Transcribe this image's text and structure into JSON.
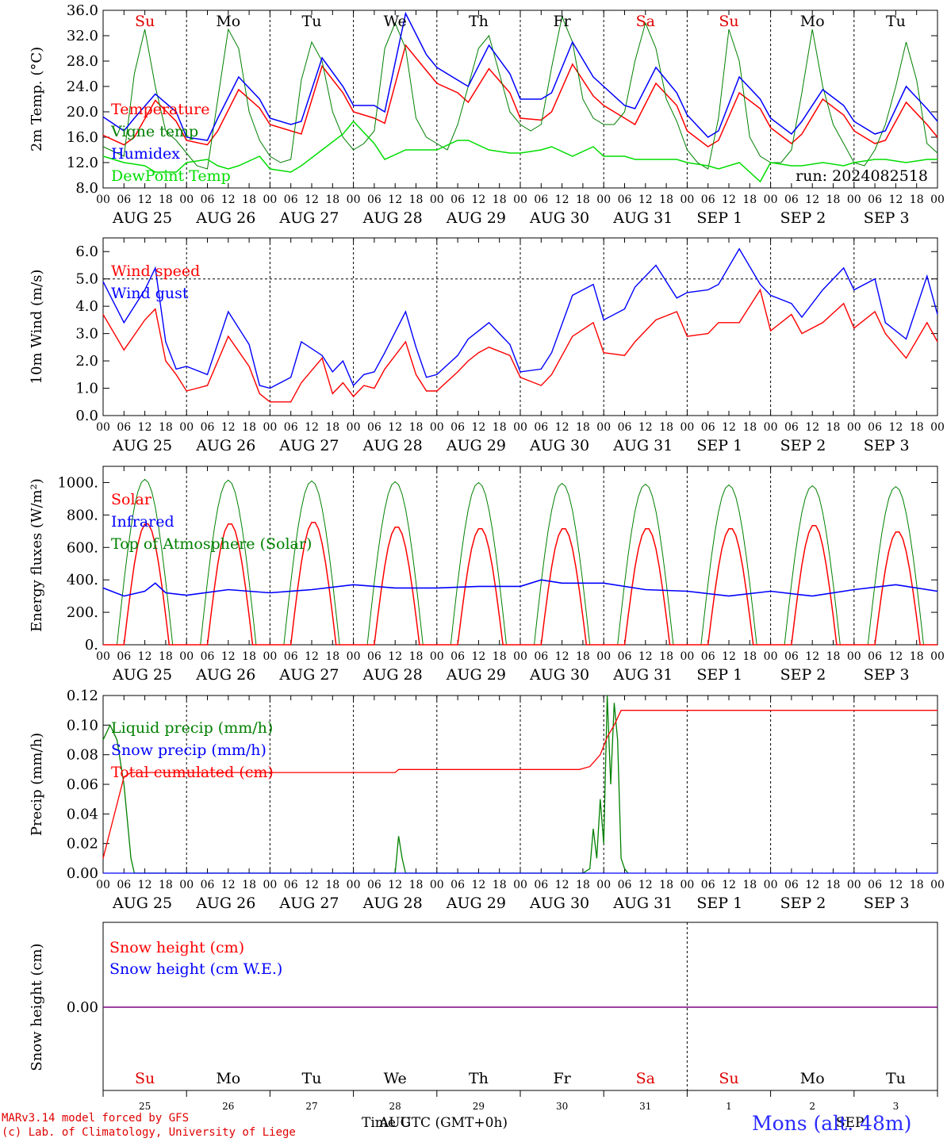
{
  "run_label": "run: 2024082518",
  "footer": {
    "model": "MARv3.14 model forced by GFS",
    "credit": "(c) Lab. of Climatology, University of Liege",
    "time_label": "Time UTC (GMT+0h)",
    "month_label": "AUG",
    "month_label2": "SEP",
    "station": "Mons (alt. 48m)"
  },
  "time_axis": {
    "hour_ticks": [
      "00",
      "06",
      "12",
      "18"
    ],
    "dates": [
      "AUG 25",
      "AUG 26",
      "AUG 27",
      "AUG 28",
      "AUG 29",
      "AUG 30",
      "AUG 31",
      "SEP  1",
      "SEP  2",
      "SEP  3"
    ],
    "weekdays": [
      "Su",
      "Mo",
      "Tu",
      "We",
      "Th",
      "Fr",
      "Sa",
      "Su",
      "Mo",
      "Tu"
    ],
    "weekend_color": "#e00000",
    "weekday_color": "#000000",
    "day_numbers": [
      "25",
      "26",
      "27",
      "28",
      "29",
      "30",
      "31",
      "1",
      "2",
      "3"
    ]
  },
  "colors": {
    "red": "#ff0000",
    "green": "#008000",
    "blue": "#0000ff",
    "lime": "#00dd00",
    "purple": "#800080"
  },
  "chart_data": [
    {
      "type": "line",
      "ylabel": "2m Temp. (°C)",
      "ylim": [
        8,
        36
      ],
      "yticks": [
        "8.0",
        "12.0",
        "16.0",
        "20.0",
        "24.0",
        "28.0",
        "32.0",
        "36.0"
      ],
      "x_unit": "hours since AUG 25 00 UTC",
      "series": [
        {
          "name": "Temperature",
          "color": "red",
          "x": [
            0,
            6,
            9,
            15,
            21,
            24,
            30,
            33,
            39,
            45,
            48,
            54,
            57,
            63,
            69,
            72,
            78,
            81,
            87,
            93,
            96,
            102,
            105,
            111,
            117,
            120,
            126,
            129,
            135,
            141,
            144,
            150,
            153,
            159,
            165,
            168,
            174,
            177,
            183,
            189,
            192,
            198,
            201,
            207,
            213,
            216,
            222,
            225,
            231,
            237,
            240
          ],
          "values": [
            16.3,
            14.8,
            16,
            21.8,
            18.5,
            15.5,
            14.8,
            17,
            23.5,
            20.6,
            18,
            17,
            16.5,
            27.2,
            23,
            20,
            19,
            18.2,
            30.5,
            26.5,
            24.5,
            23,
            21.5,
            26.8,
            23,
            19,
            18.7,
            20,
            27.5,
            22.5,
            21,
            19,
            18,
            24.5,
            21,
            17,
            14.5,
            15.5,
            23,
            20.5,
            17.5,
            15,
            16.5,
            22,
            19.5,
            17,
            15,
            15.5,
            21.5,
            18,
            16
          ]
        },
        {
          "name": "Vigne temp",
          "color": "green",
          "x": [
            0,
            6,
            9,
            12,
            15,
            18,
            21,
            24,
            27,
            30,
            33,
            36,
            39,
            42,
            45,
            48,
            51,
            54,
            57,
            60,
            63,
            66,
            69,
            72,
            75,
            78,
            81,
            84,
            87,
            90,
            93,
            96,
            99,
            102,
            105,
            108,
            111,
            114,
            117,
            120,
            123,
            126,
            129,
            132,
            135,
            138,
            141,
            144,
            147,
            150,
            153,
            156,
            159,
            162,
            165,
            168,
            171,
            174,
            177,
            180,
            183,
            186,
            189,
            192,
            195,
            198,
            201,
            204,
            207,
            210,
            213,
            216,
            219,
            222,
            225,
            228,
            231,
            234,
            237,
            240
          ],
          "values": [
            14.5,
            13,
            26,
            33,
            24,
            17,
            15.5,
            13.5,
            11.5,
            11,
            22,
            33,
            30,
            20,
            15.5,
            13,
            12,
            12.5,
            25,
            31,
            28,
            20,
            16,
            14,
            15,
            17,
            30,
            34,
            30,
            19,
            16,
            15,
            14,
            18,
            24,
            30,
            32,
            26,
            20,
            18,
            17,
            18,
            27,
            35,
            31,
            22,
            19,
            18,
            18,
            20,
            28,
            34,
            30,
            22,
            18.5,
            14,
            12,
            11,
            19,
            33,
            28,
            16,
            13,
            12,
            12,
            14,
            23,
            33,
            24,
            18,
            15,
            12,
            11.5,
            14,
            18,
            24,
            31,
            25,
            15,
            13.5
          ]
        },
        {
          "name": "Humidex",
          "color": "blue",
          "x": [
            0,
            6,
            9,
            15,
            21,
            24,
            30,
            33,
            39,
            45,
            48,
            54,
            57,
            63,
            69,
            72,
            78,
            81,
            87,
            93,
            96,
            102,
            105,
            111,
            117,
            120,
            126,
            129,
            135,
            141,
            144,
            150,
            153,
            159,
            165,
            168,
            174,
            177,
            183,
            189,
            192,
            198,
            201,
            207,
            213,
            216,
            222,
            225,
            231,
            237,
            240
          ],
          "values": [
            19.2,
            17,
            19,
            22.8,
            20,
            16,
            15.5,
            19,
            25.5,
            22,
            19,
            18,
            18.5,
            28.5,
            24,
            21,
            21,
            20,
            35.5,
            29,
            27,
            25,
            24,
            30.5,
            26,
            22,
            22,
            23,
            31,
            25.5,
            24,
            21,
            20.5,
            27,
            23,
            19.5,
            16,
            17,
            25.5,
            22,
            19,
            16.5,
            18.5,
            23.5,
            21,
            18.5,
            16.5,
            17,
            24,
            20.5,
            18.5
          ]
        },
        {
          "name": "DewPoint Temp",
          "color": "lime",
          "x": [
            0,
            6,
            12,
            15,
            21,
            24,
            30,
            33,
            36,
            39,
            45,
            48,
            54,
            57,
            63,
            69,
            72,
            78,
            81,
            87,
            93,
            96,
            102,
            105,
            111,
            117,
            120,
            126,
            129,
            135,
            141,
            144,
            150,
            153,
            159,
            165,
            168,
            174,
            177,
            183,
            189,
            192,
            198,
            201,
            207,
            213,
            216,
            222,
            225,
            231,
            237,
            240
          ],
          "values": [
            13,
            12,
            11.5,
            10.5,
            10.5,
            12,
            12.5,
            11.5,
            11,
            11.5,
            13,
            11,
            10.5,
            11.5,
            14,
            16.5,
            18.5,
            15,
            12.5,
            14,
            14,
            14,
            15.5,
            15.5,
            14,
            13.5,
            13.5,
            14,
            14.5,
            13,
            14.5,
            13,
            13,
            12.5,
            12.5,
            12.5,
            12,
            11.5,
            11,
            12,
            9,
            12,
            11.5,
            11.5,
            12,
            11.5,
            12,
            12.5,
            12.5,
            12,
            12.5,
            12.5
          ]
        }
      ]
    },
    {
      "type": "line",
      "ylabel": "10m Wind (m/s)",
      "ylim": [
        0,
        6.5
      ],
      "yticks": [
        "0.0",
        "1.0",
        "2.0",
        "3.0",
        "4.0",
        "5.0",
        "6.0"
      ],
      "reference_line": 5.0,
      "series": [
        {
          "name": "Wind speed",
          "color": "red",
          "x": [
            0,
            6,
            12,
            15,
            18,
            21,
            24,
            30,
            36,
            42,
            45,
            48,
            54,
            57,
            63,
            66,
            69,
            72,
            75,
            78,
            81,
            87,
            90,
            93,
            96,
            102,
            105,
            108,
            111,
            117,
            120,
            126,
            129,
            135,
            141,
            144,
            150,
            153,
            159,
            165,
            168,
            174,
            177,
            183,
            189,
            192,
            198,
            201,
            207,
            213,
            216,
            222,
            225,
            231,
            237,
            240
          ],
          "values": [
            3.7,
            2.4,
            3.5,
            3.9,
            2.0,
            1.5,
            0.9,
            1.1,
            2.9,
            1.8,
            0.8,
            0.5,
            0.5,
            1.2,
            2.1,
            0.8,
            1.2,
            0.7,
            1.1,
            1.0,
            1.7,
            2.7,
            1.5,
            0.9,
            0.9,
            1.6,
            2.0,
            2.3,
            2.5,
            2.2,
            1.4,
            1.1,
            1.5,
            2.9,
            3.4,
            2.3,
            2.2,
            2.7,
            3.5,
            3.8,
            2.9,
            3.0,
            3.4,
            3.4,
            4.6,
            3.1,
            3.7,
            3.0,
            3.4,
            4.1,
            3.2,
            3.8,
            3.0,
            2.1,
            3.4,
            2.7
          ]
        },
        {
          "name": "Wind gust",
          "color": "blue",
          "x": [
            0,
            6,
            12,
            15,
            18,
            21,
            24,
            30,
            36,
            42,
            45,
            48,
            54,
            57,
            63,
            66,
            69,
            72,
            75,
            78,
            81,
            87,
            90,
            93,
            96,
            102,
            105,
            108,
            111,
            117,
            120,
            126,
            129,
            135,
            141,
            144,
            150,
            153,
            159,
            165,
            168,
            174,
            177,
            183,
            189,
            192,
            198,
            201,
            207,
            213,
            216,
            222,
            225,
            231,
            237,
            240
          ],
          "values": [
            4.9,
            3.4,
            4.6,
            5.4,
            2.7,
            1.7,
            1.8,
            1.5,
            3.8,
            2.6,
            1.1,
            1.0,
            1.4,
            2.7,
            2.2,
            1.6,
            2.0,
            1.1,
            1.5,
            1.6,
            2.3,
            3.8,
            2.5,
            1.4,
            1.5,
            2.2,
            2.8,
            3.1,
            3.4,
            2.6,
            1.6,
            1.7,
            2.3,
            4.4,
            4.8,
            3.5,
            3.9,
            4.7,
            5.5,
            4.3,
            4.5,
            4.6,
            4.8,
            6.1,
            4.8,
            4.4,
            4.1,
            3.6,
            4.6,
            5.4,
            4.6,
            5.0,
            3.4,
            2.8,
            5.1,
            3.7
          ]
        }
      ]
    },
    {
      "type": "line",
      "ylabel": "Energy fluxes (W/m²)",
      "ylim": [
        0,
        1100
      ],
      "yticks": [
        "0.",
        "200.",
        "400.",
        "600.",
        "800.",
        "1000."
      ],
      "series": [
        {
          "name": "Solar",
          "color": "red",
          "daily_peaks": [
            750,
            750,
            760,
            730,
            720,
            720,
            720,
            720,
            740,
            700
          ],
          "x_note": "daylight 06–19 UTC"
        },
        {
          "name": "Infrared",
          "color": "blue",
          "x": [
            0,
            6,
            12,
            15,
            18,
            24,
            36,
            48,
            60,
            72,
            84,
            96,
            108,
            120,
            126,
            132,
            144,
            156,
            168,
            180,
            192,
            204,
            216,
            228,
            240
          ],
          "values": [
            350,
            300,
            330,
            380,
            320,
            305,
            340,
            320,
            340,
            370,
            350,
            350,
            360,
            360,
            400,
            380,
            380,
            340,
            330,
            300,
            330,
            300,
            340,
            370,
            330
          ]
        },
        {
          "name": "Top of Atmosphere (Solar)",
          "color": "green",
          "daily_peaks": [
            1020,
            1015,
            1010,
            1005,
            1000,
            995,
            990,
            985,
            980,
            975
          ],
          "x_note": "daylight 04–20 UTC"
        }
      ]
    },
    {
      "type": "line",
      "ylabel": "Precip (mm/h)",
      "ylim": [
        0,
        0.12
      ],
      "yticks": [
        "0.00",
        "0.02",
        "0.04",
        "0.06",
        "0.08",
        "0.10",
        "0.12"
      ],
      "series": [
        {
          "name": "Liquid precip (mm/h)",
          "color": "green",
          "x": [
            0,
            2,
            4,
            6,
            8,
            9,
            84,
            85,
            86,
            87,
            138,
            140,
            141,
            142,
            143,
            144,
            145,
            146,
            147,
            148,
            149,
            150,
            151
          ],
          "values": [
            0.09,
            0.1,
            0.09,
            0.06,
            0.01,
            0.0,
            0.0,
            0.025,
            0.01,
            0.0,
            0.0,
            0.003,
            0.03,
            0.01,
            0.05,
            0.02,
            0.12,
            0.06,
            0.115,
            0.09,
            0.01,
            0.003,
            0.0
          ]
        },
        {
          "name": "Snow precip (mm/h)",
          "color": "blue",
          "x": [
            0,
            240
          ],
          "values": [
            0,
            0
          ]
        },
        {
          "name": "Total cumulated (cm)",
          "color": "red",
          "x": [
            0,
            6,
            8,
            84,
            85,
            137,
            140,
            143,
            145,
            147,
            149,
            240
          ],
          "values": [
            0.01,
            0.065,
            0.068,
            0.068,
            0.07,
            0.07,
            0.072,
            0.08,
            0.092,
            0.1,
            0.11,
            0.11
          ]
        }
      ]
    },
    {
      "type": "line",
      "ylabel": "Snow height (cm)",
      "ytick": "0.00",
      "series": [
        {
          "name": "Snow height (cm)",
          "color": "red",
          "x": [
            0,
            240
          ],
          "values": [
            0,
            0
          ]
        },
        {
          "name": "Snow height (cm W.E.)",
          "color": "blue",
          "x": [
            0,
            240
          ],
          "values": [
            0,
            0
          ]
        }
      ]
    }
  ]
}
